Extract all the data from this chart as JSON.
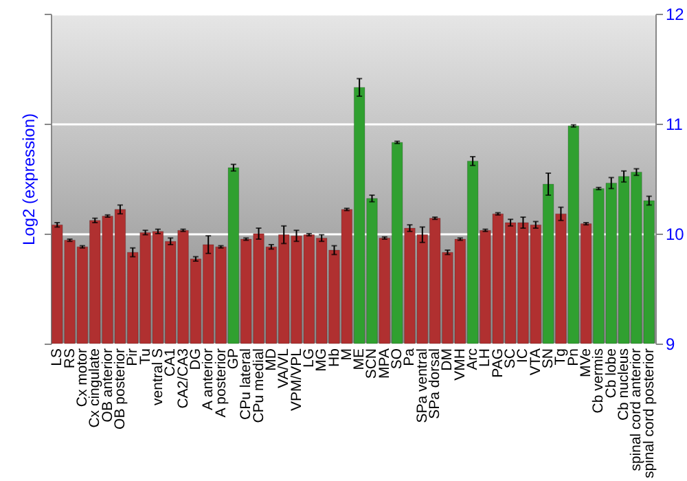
{
  "chart_data": {
    "type": "bar",
    "ylabel": "Log2 (expression)",
    "categories": [
      "LS",
      "RS",
      "Cx motor",
      "Cx cingulate",
      "OB anterior",
      "OB posterior",
      "Pir",
      "Tu",
      "ventral S",
      "CA1",
      "CA2/CA3",
      "DG",
      "A anterior",
      "A posterior",
      "GP",
      "CPu lateral",
      "CPu medial",
      "MD",
      "VA/VL",
      "VPM/VPL",
      "LG",
      "MG",
      "Hb",
      "M",
      "ME",
      "SCN",
      "MPA",
      "SO",
      "Pa",
      "SPa ventral",
      "SPa dorsal",
      "DM",
      "VMH",
      "Arc",
      "LH",
      "PAG",
      "SC",
      "IC",
      "VTA",
      "SN",
      "Tg",
      "Pn",
      "MVe",
      "Cb vermis",
      "Cb lobe",
      "Cb nucleus",
      "spinal cord anterior",
      "spinal cord posterior"
    ],
    "values": [
      10.08,
      9.94,
      9.88,
      10.12,
      10.16,
      10.22,
      9.83,
      10.01,
      10.02,
      9.93,
      10.03,
      9.77,
      9.9,
      9.88,
      10.6,
      9.95,
      10.0,
      9.88,
      9.99,
      9.98,
      9.99,
      9.96,
      9.85,
      10.22,
      11.33,
      10.32,
      9.96,
      10.83,
      10.05,
      9.99,
      10.14,
      9.83,
      9.95,
      10.66,
      10.03,
      10.18,
      10.1,
      10.1,
      10.08,
      10.45,
      10.18,
      10.98,
      10.09,
      10.41,
      10.46,
      10.52,
      10.56,
      10.3
    ],
    "errors": [
      0.02,
      0.01,
      0.01,
      0.02,
      0.01,
      0.04,
      0.04,
      0.02,
      0.02,
      0.03,
      0.01,
      0.02,
      0.08,
      0.01,
      0.03,
      0.01,
      0.05,
      0.02,
      0.08,
      0.05,
      0.01,
      0.03,
      0.04,
      0.01,
      0.08,
      0.03,
      0.01,
      0.01,
      0.03,
      0.07,
      0.01,
      0.02,
      0.01,
      0.04,
      0.01,
      0.01,
      0.03,
      0.05,
      0.03,
      0.1,
      0.06,
      0.01,
      0.01,
      0.01,
      0.05,
      0.05,
      0.03,
      0.04
    ],
    "colors": [
      "#b03030",
      "#b03030",
      "#b03030",
      "#b03030",
      "#b03030",
      "#b03030",
      "#b03030",
      "#b03030",
      "#b03030",
      "#b03030",
      "#b03030",
      "#b03030",
      "#b03030",
      "#b03030",
      "#30a030",
      "#b03030",
      "#b03030",
      "#b03030",
      "#b03030",
      "#b03030",
      "#b03030",
      "#b03030",
      "#b03030",
      "#b03030",
      "#30a030",
      "#30a030",
      "#b03030",
      "#30a030",
      "#b03030",
      "#b03030",
      "#b03030",
      "#b03030",
      "#b03030",
      "#30a030",
      "#b03030",
      "#b03030",
      "#b03030",
      "#b03030",
      "#b03030",
      "#30a030",
      "#b03030",
      "#30a030",
      "#b03030",
      "#30a030",
      "#30a030",
      "#30a030",
      "#30a030",
      "#30a030"
    ],
    "ylim": [
      9,
      12
    ],
    "yticks": [
      9,
      10,
      11,
      12
    ],
    "grid": true
  }
}
